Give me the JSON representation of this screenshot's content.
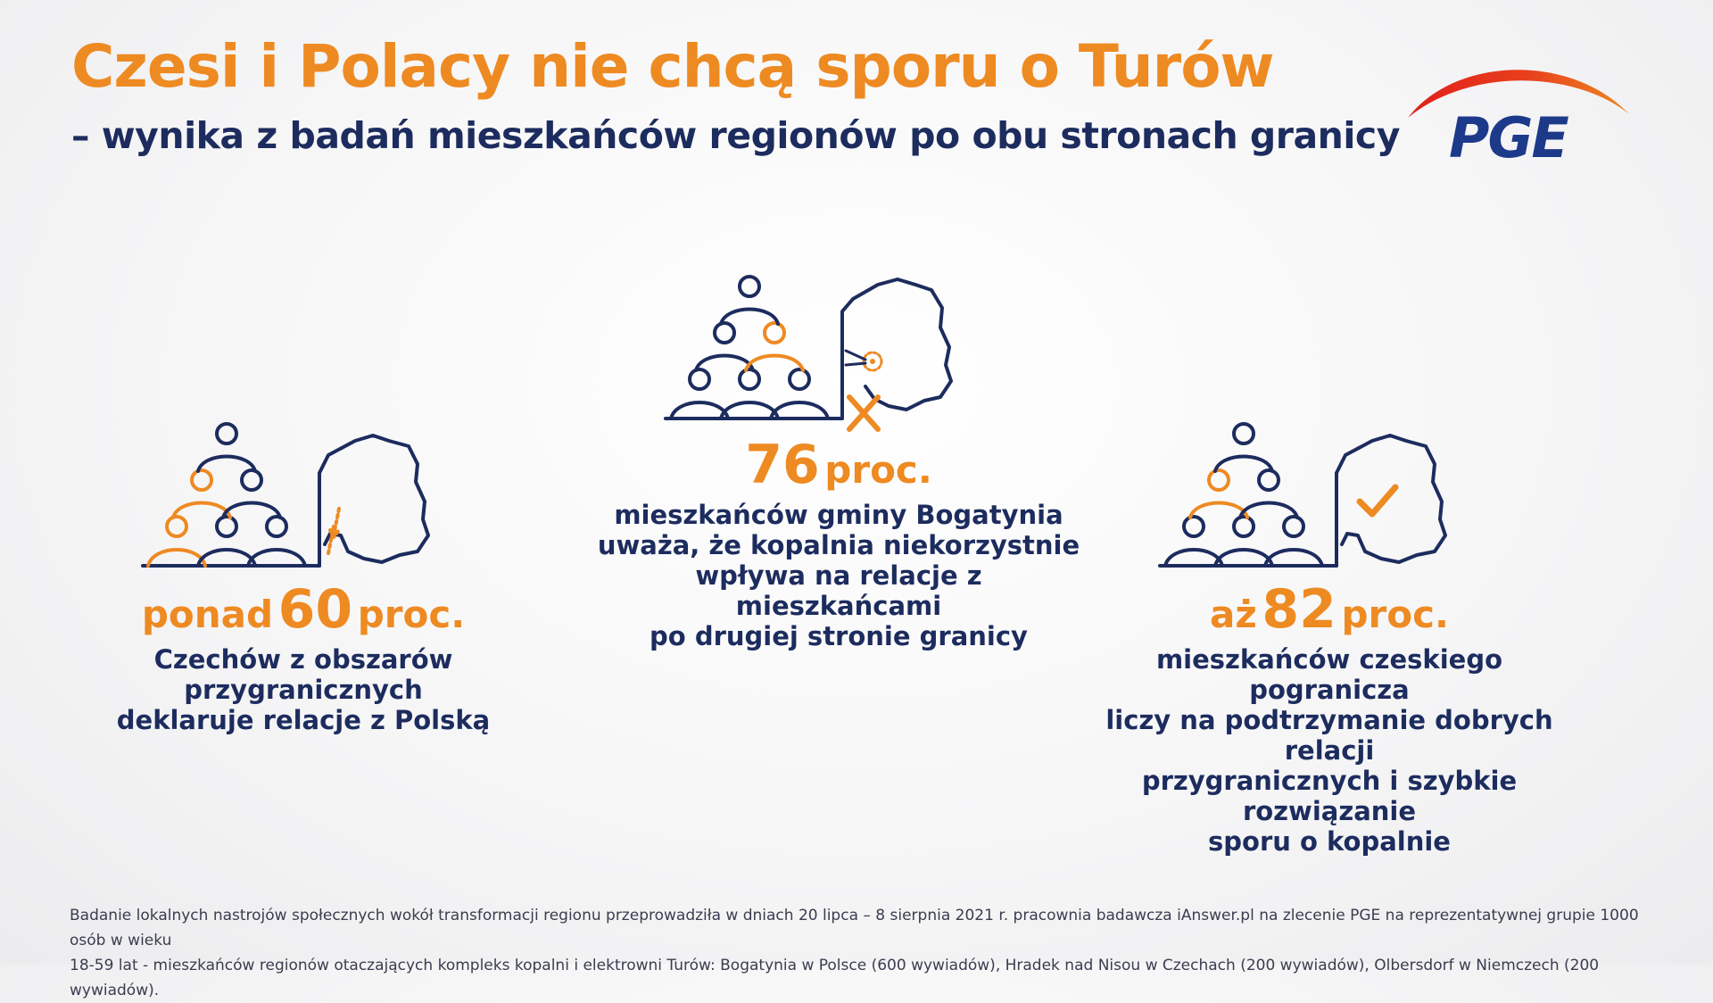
{
  "header": {
    "title": "Czesi i Polacy nie chcą sporu o Turów",
    "subtitle": "– wynika z badań mieszkańców regionów po obu stronach granicy"
  },
  "logo": {
    "text": "PGE",
    "colors": {
      "arc": "#e1201b",
      "arc_end": "#ee8a22",
      "text": "#1d3a8a"
    }
  },
  "colors": {
    "accent": "#ee8a22",
    "navy": "#1d2c5e"
  },
  "stats": [
    {
      "prefix": "ponad",
      "number": "60",
      "unit": "proc.",
      "description": [
        "Czechów z obszarów",
        "przygranicznych",
        "deklaruje relacje z Polską"
      ],
      "icon": "people-pyramid-map-arrows-icon"
    },
    {
      "prefix": "",
      "number": "76",
      "unit": "proc.",
      "description": [
        "mieszkańców gminy Bogatynia",
        "uważa, że kopalnia niekorzystnie",
        "wpływa na relacje z mieszkańcami",
        "po drugiej stronie granicy"
      ],
      "icon": "people-pyramid-map-cross-icon"
    },
    {
      "prefix": "aż",
      "number": "82",
      "unit": "proc.",
      "description": [
        "mieszkańców czeskiego pogranicza",
        "liczy na podtrzymanie dobrych relacji",
        "przygranicznych i szybkie rozwiązanie",
        "sporu o kopalnie"
      ],
      "icon": "people-pyramid-map-check-icon"
    }
  ],
  "footnote": [
    "Badanie lokalnych nastrojów społecznych wokół transformacji regionu przeprowadziła w dniach 20 lipca – 8 sierpnia 2021 r. pracownia badawcza iAnswer.pl na zlecenie PGE na reprezentatywnej grupie 1000 osób w wieku",
    "18-59 lat - mieszkańców regionów otaczających kompleks kopalni i elektrowni Turów: Bogatynia w Polsce (600 wywiadów), Hradek nad Nisou w Czechach (200 wywiadów), Olbersdorf w Niemczech (200 wywiadów)."
  ]
}
